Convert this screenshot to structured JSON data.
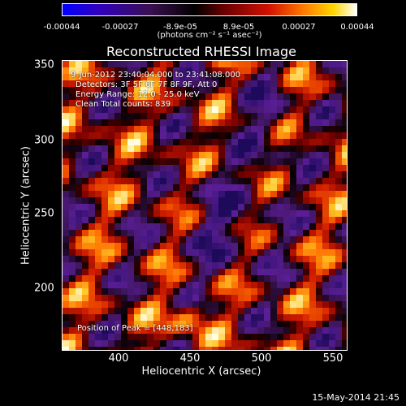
{
  "colorbar": {
    "ticks": [
      "-0.00044",
      "-0.00027",
      "-8.9e-05",
      "8.9e-05",
      "0.00027",
      "0.00044"
    ],
    "unit_label": "(photons cm⁻² s⁻¹ asec⁻²)"
  },
  "plot": {
    "title": "Reconstructed RHESSI Image",
    "time_range": "9-Jun-2012 23:40:04.000 to 23:41:08.000",
    "detectors": "Detectors: 3F 5F 6F 7F 8F 9F, Att 0",
    "energy_range": "Energy Range: 12.0 - 25.0 keV",
    "clean_counts": "Clean     Total counts: 839",
    "peak_position": "Position of Peak = [448,183]",
    "xlabel": "Heliocentric X (arcsec)",
    "ylabel": "Heliocentric Y (arcsec)",
    "x_ticks": [
      "400",
      "450",
      "500",
      "550"
    ],
    "y_ticks": [
      "350",
      "300",
      "250",
      "200"
    ]
  },
  "colors": {
    "colormap": [
      "#0000ff",
      "#3a1050",
      "#000000",
      "#d01000",
      "#ff7a00",
      "#ffd400",
      "#ffffff"
    ],
    "background": "#000000",
    "axis": "#ffffff"
  },
  "footer": {
    "timestamp": "15-May-2014 21:45"
  }
}
